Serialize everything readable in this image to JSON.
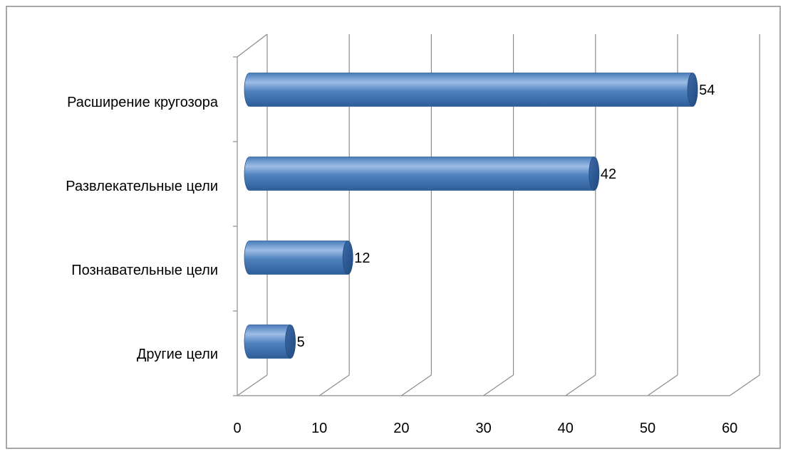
{
  "chart_data": {
    "type": "bar",
    "orientation": "horizontal",
    "style": "3d-cylinder",
    "categories": [
      "Расширение кругозора",
      "Развлекательные цели",
      "Познавательные цели",
      "Другие цели"
    ],
    "values": [
      54,
      42,
      12,
      5
    ],
    "data_labels": [
      "54",
      "42",
      "12",
      "5"
    ],
    "xlim": [
      0,
      60
    ],
    "xticks": [
      "0",
      "10",
      "20",
      "30",
      "40",
      "50",
      "60"
    ],
    "grid": true,
    "legend": "none",
    "colors": {
      "bar": "#4f81bd",
      "bar_light": "#9dbde6",
      "bar_dark": "#2c5a93",
      "grid": "#8c8c8c",
      "frame": "#8c8c8c"
    }
  }
}
